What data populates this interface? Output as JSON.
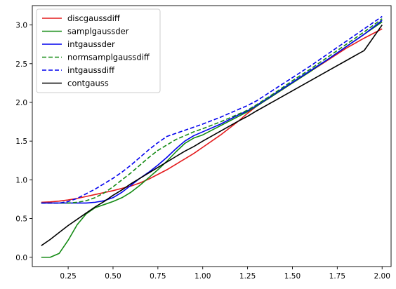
{
  "chart_data": {
    "type": "line",
    "title": "",
    "xlabel": "",
    "ylabel": "",
    "xlim": [
      0.05,
      2.05
    ],
    "ylim": [
      -0.12,
      3.25
    ],
    "xticks": [
      "0.25",
      "0.50",
      "0.75",
      "1.00",
      "1.25",
      "1.50",
      "1.75",
      "2.00"
    ],
    "yticks": [
      "0.0",
      "0.5",
      "1.0",
      "1.5",
      "2.0",
      "2.5",
      "3.0"
    ],
    "grid": false,
    "legend_position": "top-left",
    "x": [
      0.1,
      0.15,
      0.2,
      0.25,
      0.3,
      0.35,
      0.4,
      0.45,
      0.5,
      0.55,
      0.6,
      0.65,
      0.7,
      0.75,
      0.8,
      0.85,
      0.9,
      0.95,
      1.0,
      1.1,
      1.2,
      1.25,
      1.3,
      1.4,
      1.5,
      1.6,
      1.7,
      1.8,
      1.9,
      2.0
    ],
    "series": [
      {
        "name": "discgaussdiff",
        "color": "#e41a1c",
        "dash": "solid",
        "values": [
          0.71,
          0.715,
          0.725,
          0.74,
          0.76,
          0.785,
          0.81,
          0.835,
          0.86,
          0.89,
          0.92,
          0.96,
          1.01,
          1.07,
          1.13,
          1.2,
          1.27,
          1.34,
          1.42,
          1.58,
          1.76,
          1.86,
          1.95,
          2.1,
          2.25,
          2.4,
          2.55,
          2.7,
          2.83,
          2.95
        ]
      },
      {
        "name": "samplgaussder",
        "color": "#138a13",
        "dash": "solid",
        "values": [
          0.0,
          0.0,
          0.05,
          0.22,
          0.42,
          0.56,
          0.64,
          0.68,
          0.72,
          0.77,
          0.84,
          0.93,
          1.03,
          1.13,
          1.24,
          1.36,
          1.47,
          1.54,
          1.58,
          1.7,
          1.82,
          1.88,
          1.95,
          2.1,
          2.25,
          2.4,
          2.56,
          2.72,
          2.88,
          3.04
        ]
      },
      {
        "name": "intgaussder",
        "color": "#0000ee",
        "dash": "solid",
        "values": [
          0.7,
          0.7,
          0.7,
          0.7,
          0.7,
          0.7,
          0.71,
          0.73,
          0.77,
          0.84,
          0.93,
          1.02,
          1.1,
          1.19,
          1.29,
          1.4,
          1.5,
          1.57,
          1.62,
          1.72,
          1.84,
          1.89,
          1.96,
          2.11,
          2.26,
          2.41,
          2.56,
          2.72,
          2.88,
          3.06
        ]
      },
      {
        "name": "normsamplgaussdiff",
        "color": "#138a13",
        "dash": "dashed",
        "values": [
          0.7,
          0.7,
          0.7,
          0.7,
          0.71,
          0.73,
          0.77,
          0.83,
          0.91,
          1.0,
          1.09,
          1.19,
          1.29,
          1.38,
          1.45,
          1.52,
          1.57,
          1.62,
          1.66,
          1.75,
          1.85,
          1.9,
          1.97,
          2.12,
          2.28,
          2.43,
          2.59,
          2.75,
          2.91,
          3.08
        ]
      },
      {
        "name": "intgaussdiff",
        "color": "#0000ee",
        "dash": "dashed",
        "values": [
          0.7,
          0.7,
          0.7,
          0.72,
          0.76,
          0.82,
          0.88,
          0.95,
          1.02,
          1.1,
          1.19,
          1.29,
          1.39,
          1.48,
          1.56,
          1.6,
          1.64,
          1.68,
          1.72,
          1.81,
          1.91,
          1.96,
          2.02,
          2.17,
          2.32,
          2.47,
          2.63,
          2.79,
          2.95,
          3.11
        ]
      },
      {
        "name": "contgauss",
        "color": "#000000",
        "dash": "solid",
        "values": [
          0.15,
          0.23,
          0.32,
          0.41,
          0.49,
          0.57,
          0.65,
          0.72,
          0.8,
          0.87,
          0.95,
          1.02,
          1.09,
          1.16,
          1.23,
          1.3,
          1.37,
          1.43,
          1.5,
          1.63,
          1.76,
          1.82,
          1.89,
          2.02,
          2.15,
          2.28,
          2.41,
          2.54,
          2.67,
          3.0
        ]
      }
    ]
  }
}
